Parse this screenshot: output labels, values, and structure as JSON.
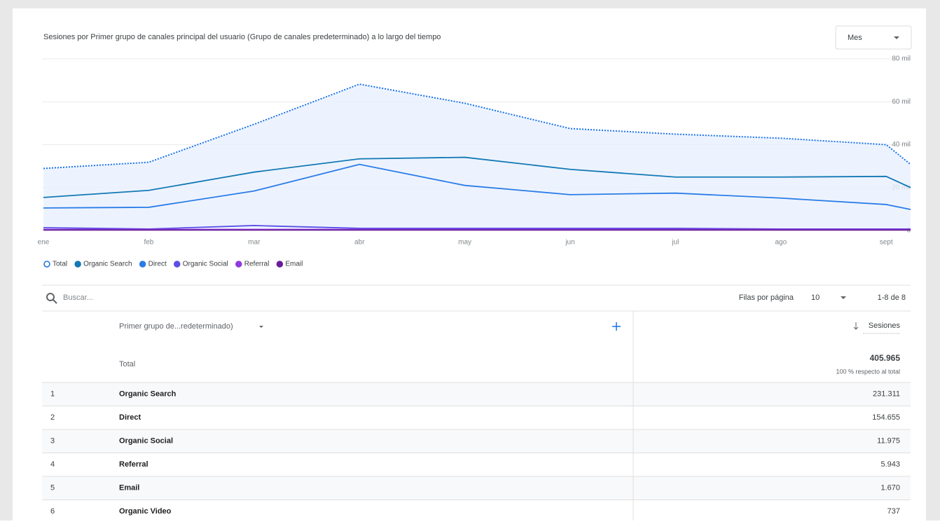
{
  "chart_data": {
    "type": "line",
    "title": "Sesiones por Primer grupo de canales principal del usuario (Grupo de canales predeterminado) a lo largo del tiempo",
    "period": "Mes",
    "categories": [
      "ene",
      "feb",
      "mar",
      "abr",
      "may",
      "jun",
      "jul",
      "ago",
      "sept",
      null
    ],
    "series": [
      {
        "name": "Total",
        "color": "#1a73e8",
        "style": "dotted",
        "area": true,
        "values": [
          28900,
          31800,
          49500,
          68200,
          59300,
          47500,
          44900,
          43000,
          40000,
          30800
        ]
      },
      {
        "name": "Organic Search",
        "color": "#1379b5",
        "style": "solid",
        "values": [
          15400,
          18700,
          27200,
          33400,
          34100,
          28500,
          24900,
          24900,
          25200,
          20000
        ]
      },
      {
        "name": "Direct",
        "color": "#2a7de8",
        "style": "solid",
        "values": [
          10500,
          10800,
          18400,
          30800,
          21000,
          16700,
          17400,
          15100,
          12100,
          9800
        ]
      },
      {
        "name": "Organic Social",
        "color": "#5b4fe8",
        "style": "solid",
        "values": [
          1300,
          700,
          2300,
          1000,
          1000,
          1000,
          1000,
          700,
          700,
          700
        ]
      },
      {
        "name": "Referral",
        "color": "#9038e0",
        "style": "solid",
        "values": [
          500,
          500,
          500,
          500,
          500,
          500,
          500,
          500,
          500,
          500
        ]
      },
      {
        "name": "Email",
        "color": "#6a1b9a",
        "style": "solid",
        "values": [
          200,
          200,
          200,
          200,
          200,
          200,
          200,
          200,
          200,
          200
        ]
      }
    ],
    "ylim": [
      0,
      80000
    ],
    "yticks": [
      0,
      {
        "value": 20000,
        "label": "20 mil"
      },
      {
        "value": 40000,
        "label": "40 mil"
      },
      {
        "value": 60000,
        "label": "60 mil"
      },
      {
        "value": 80000,
        "label": "80 mil"
      }
    ],
    "grid": true
  },
  "search": {
    "placeholder": "Buscar...",
    "rows_per_page_label": "Filas por página",
    "rows_per_page": "10",
    "range": "1-8 de 8"
  },
  "table": {
    "headers": [
      "Primer grupo de...redeterminado)",
      "Sesiones"
    ],
    "total": {
      "label": "Total",
      "value": "405.965",
      "note": "100 % respecto al total"
    },
    "rows": [
      [
        "1",
        "Organic Search",
        "231.311"
      ],
      [
        "2",
        "Direct",
        "154.655"
      ],
      [
        "3",
        "Organic Social",
        "11.975"
      ],
      [
        "4",
        "Referral",
        "5.943"
      ],
      [
        "5",
        "Email",
        "1.670"
      ],
      [
        "6",
        "Organic Video",
        "737"
      ]
    ]
  }
}
